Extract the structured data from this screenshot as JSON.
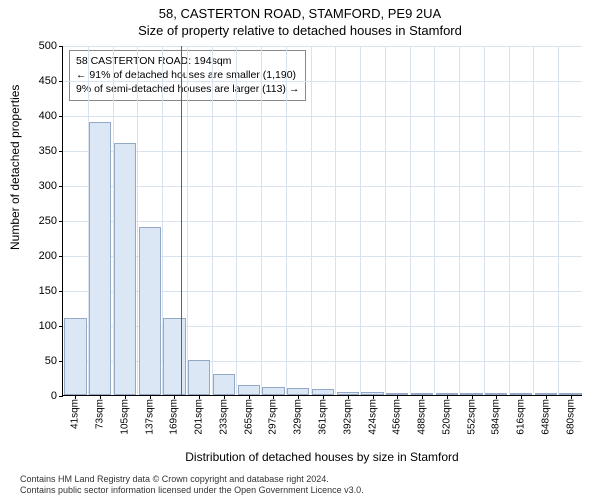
{
  "header": {
    "address": "58, CASTERTON ROAD, STAMFORD, PE9 2UA",
    "subtitle": "Size of property relative to detached houses in Stamford"
  },
  "chart": {
    "type": "histogram",
    "ylabel": "Number of detached properties",
    "xlabel": "Distribution of detached houses by size in Stamford",
    "ylim": [
      0,
      500
    ],
    "ytick_step": 50,
    "yticks": [
      0,
      50,
      100,
      150,
      200,
      250,
      300,
      350,
      400,
      450,
      500
    ],
    "categories": [
      "41sqm",
      "73sqm",
      "105sqm",
      "137sqm",
      "169sqm",
      "201sqm",
      "233sqm",
      "265sqm",
      "297sqm",
      "329sqm",
      "361sqm",
      "392sqm",
      "424sqm",
      "456sqm",
      "488sqm",
      "520sqm",
      "552sqm",
      "584sqm",
      "616sqm",
      "648sqm",
      "680sqm"
    ],
    "values": [
      110,
      390,
      360,
      240,
      110,
      50,
      30,
      15,
      12,
      10,
      8,
      5,
      5,
      3,
      2,
      2,
      1,
      1,
      1,
      1,
      1
    ],
    "bar_color": "#dbe7f5",
    "bar_border": "#95a9c7",
    "bar_width": 0.9,
    "grid_color": "#d9e3f0",
    "axis_color": "#000000",
    "background_color": "#ffffff",
    "reference_line": {
      "value_sqm": 194,
      "color": "#cc3333",
      "bin_position": 4.78
    },
    "annotation": {
      "line1": "58 CASTERTON ROAD: 194sqm",
      "line2": "← 91% of detached houses are smaller (1,190)",
      "line3": "9% of semi-detached houses are larger (113) →"
    },
    "label_fontsize": 12,
    "tick_fontsize": 11
  },
  "footer": {
    "line1": "Contains HM Land Registry data © Crown copyright and database right 2024.",
    "line2": "Contains public sector information licensed under the Open Government Licence v3.0."
  }
}
